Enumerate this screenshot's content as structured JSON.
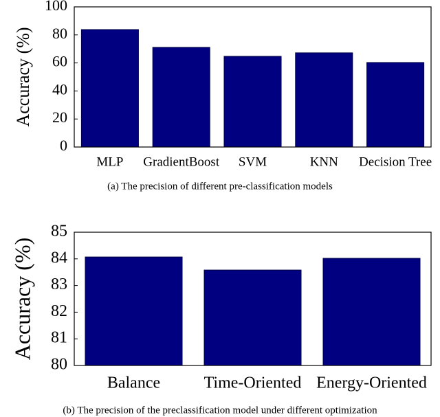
{
  "chart_data": [
    {
      "type": "bar",
      "caption": "(a) The precision of different pre-classification models",
      "y_label": "Accuracy (%)",
      "categories": [
        "MLP",
        "GradientBoost",
        "SVM",
        "KNN",
        "Decision Tree"
      ],
      "values": [
        83.8,
        71.1,
        64.7,
        67.2,
        60.3
      ],
      "color": "#000080",
      "ylim": [
        0,
        100
      ],
      "yticks": [
        0,
        20,
        40,
        60,
        80,
        100
      ]
    },
    {
      "type": "bar",
      "caption": "(b) The precision of the preclassification model under different optimization",
      "y_label": "Accuracy (%)",
      "categories": [
        "Balance",
        "Time-Oriented",
        "Energy-Oriented"
      ],
      "values": [
        84.07,
        83.58,
        84.02
      ],
      "color": "#000080",
      "ylim": [
        80,
        85
      ],
      "yticks": [
        80,
        81,
        82,
        83,
        84,
        85
      ]
    }
  ]
}
